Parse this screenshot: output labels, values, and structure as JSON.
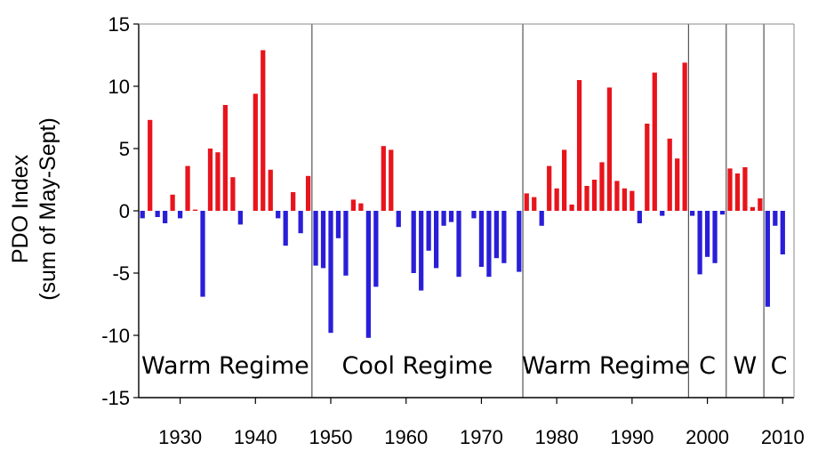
{
  "chart_data": {
    "type": "bar",
    "ylabel_line1": "PDO Index",
    "ylabel_line2": "(sum of May-Sept)",
    "ylim": [
      -15,
      15
    ],
    "xlim": [
      1924.5,
      2011.5
    ],
    "yticks": [
      15,
      10,
      5,
      0,
      -5,
      -10,
      -15
    ],
    "xticks": [
      1930,
      1940,
      1950,
      1960,
      1970,
      1980,
      1990,
      2000,
      2010
    ],
    "grid": false,
    "positive_color": "#e8141c",
    "negative_color": "#2a1ed8",
    "regime_boundaries": [
      1947.5,
      1975.5,
      1997.5,
      2002.5,
      2007.5
    ],
    "regimes": [
      {
        "label": "Warm Regime",
        "start": 1924.5,
        "end": 1947.5
      },
      {
        "label": "Cool Regime",
        "start": 1947.5,
        "end": 1975.5
      },
      {
        "label": "Warm Regime",
        "start": 1975.5,
        "end": 1997.5
      },
      {
        "label": "C",
        "start": 1997.5,
        "end": 2002.5
      },
      {
        "label": "W",
        "start": 2002.5,
        "end": 2007.5
      },
      {
        "label": "C",
        "start": 2007.5,
        "end": 2011.5
      }
    ],
    "x": [
      1925,
      1926,
      1927,
      1928,
      1929,
      1930,
      1931,
      1932,
      1933,
      1934,
      1935,
      1936,
      1937,
      1938,
      1939,
      1940,
      1941,
      1942,
      1943,
      1944,
      1945,
      1946,
      1947,
      1948,
      1949,
      1950,
      1951,
      1952,
      1953,
      1954,
      1955,
      1956,
      1957,
      1958,
      1959,
      1960,
      1961,
      1962,
      1963,
      1964,
      1965,
      1966,
      1967,
      1968,
      1969,
      1970,
      1971,
      1972,
      1973,
      1974,
      1975,
      1976,
      1977,
      1978,
      1979,
      1980,
      1981,
      1982,
      1983,
      1984,
      1985,
      1986,
      1987,
      1988,
      1989,
      1990,
      1991,
      1992,
      1993,
      1994,
      1995,
      1996,
      1997,
      1998,
      1999,
      2000,
      2001,
      2002,
      2003,
      2004,
      2005,
      2006,
      2007,
      2008,
      2009,
      2010
    ],
    "values": [
      -0.6,
      7.3,
      -0.5,
      -1.0,
      1.3,
      -0.6,
      3.6,
      0.1,
      -6.9,
      5.0,
      4.7,
      8.5,
      2.7,
      -1.1,
      0,
      9.4,
      12.9,
      3.3,
      -0.6,
      -2.8,
      1.5,
      -1.8,
      2.8,
      -4.4,
      -4.6,
      -9.8,
      -2.2,
      -5.2,
      0.9,
      0.6,
      -10.2,
      -6.1,
      5.2,
      4.9,
      -1.3,
      0,
      -5.0,
      -6.4,
      -3.2,
      -4.6,
      -1.2,
      -0.9,
      -5.3,
      0,
      -0.6,
      -4.5,
      -5.3,
      -3.8,
      -4.2,
      0,
      -4.9,
      1.4,
      1.1,
      -1.2,
      3.6,
      1.8,
      4.9,
      0.5,
      10.5,
      2.0,
      2.5,
      3.9,
      9.9,
      2.4,
      1.8,
      1.6,
      -1.0,
      7.0,
      11.1,
      -0.4,
      5.8,
      4.2,
      11.9,
      -0.4,
      -5.1,
      -3.7,
      -4.2,
      -0.3,
      3.4,
      3.0,
      3.5,
      0.3,
      1.0,
      -7.7,
      -1.2,
      -3.5
    ]
  }
}
